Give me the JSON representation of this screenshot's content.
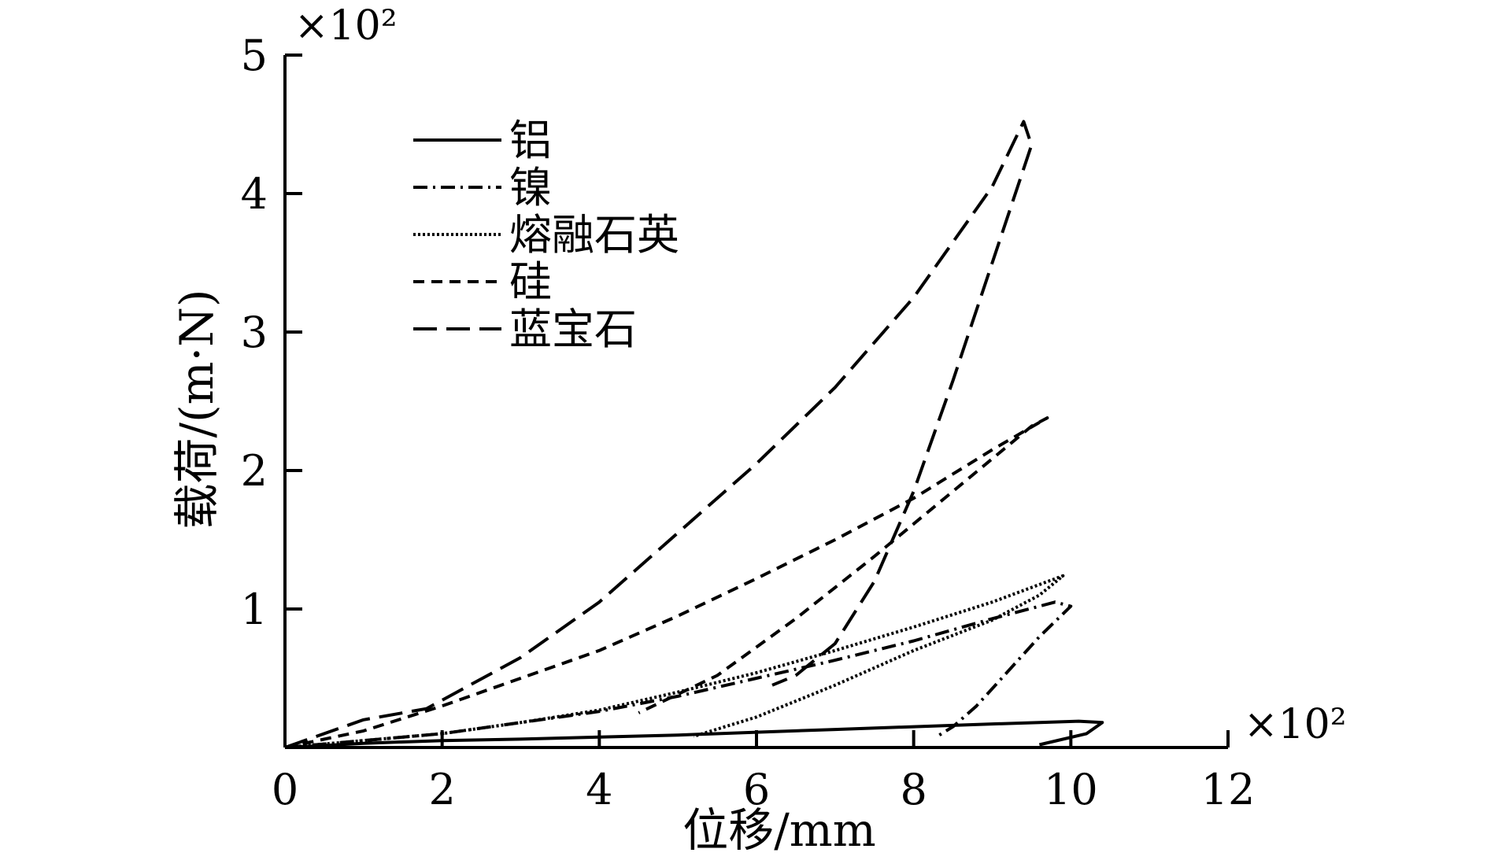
{
  "chart_data": {
    "type": "line",
    "x_scale_label": "×10²",
    "y_scale_label": "×10²",
    "xlabel": "位移/mm",
    "ylabel": "载荷/(m·N)",
    "xlim": [
      0,
      12
    ],
    "ylim": [
      0,
      5
    ],
    "x_ticks": [
      "0",
      "2",
      "4",
      "6",
      "8",
      "10",
      "12"
    ],
    "y_ticks": [
      "1",
      "2",
      "3",
      "4",
      "5"
    ],
    "legend_position": "upper-left",
    "grid": false,
    "series": [
      {
        "name": "铝",
        "style": "solid",
        "x": [
          0,
          1,
          2,
          3,
          4,
          5,
          6,
          7,
          8,
          9,
          9.6,
          10.1,
          10.4,
          10.2,
          9.6
        ],
        "y": [
          0,
          0.03,
          0.05,
          0.06,
          0.075,
          0.09,
          0.11,
          0.13,
          0.15,
          0.17,
          0.18,
          0.19,
          0.18,
          0.1,
          0.02
        ]
      },
      {
        "name": "镍",
        "style": "dashdot",
        "x": [
          0,
          1,
          2,
          3,
          4,
          5,
          6,
          7,
          8,
          9,
          9.8,
          10,
          9.6,
          9.2,
          8.8,
          8.5,
          8.3
        ],
        "y": [
          0,
          0.05,
          0.1,
          0.18,
          0.26,
          0.37,
          0.5,
          0.63,
          0.77,
          0.93,
          1.05,
          1.02,
          0.8,
          0.55,
          0.3,
          0.15,
          0.08
        ]
      },
      {
        "name": "熔融石英",
        "style": "dotted",
        "x": [
          0,
          1,
          2,
          3,
          4,
          5,
          6,
          7,
          8,
          9,
          9.9,
          9.6,
          9,
          8,
          7,
          6,
          5.2
        ],
        "y": [
          0,
          0.05,
          0.1,
          0.18,
          0.27,
          0.4,
          0.54,
          0.7,
          0.87,
          1.05,
          1.24,
          1.1,
          0.92,
          0.7,
          0.45,
          0.22,
          0.08
        ]
      },
      {
        "name": "硅",
        "style": "shortdash",
        "x": [
          0,
          1,
          2,
          3,
          4,
          5,
          6,
          7,
          8,
          9,
          9.7,
          9.5,
          8.5,
          7.5,
          6.5,
          5.5,
          4.5
        ],
        "y": [
          0,
          0.12,
          0.3,
          0.5,
          0.7,
          0.95,
          1.22,
          1.5,
          1.8,
          2.15,
          2.38,
          2.32,
          1.85,
          1.38,
          0.93,
          0.52,
          0.25
        ]
      },
      {
        "name": "蓝宝石",
        "style": "longdash",
        "x": [
          0,
          1,
          1.8,
          3,
          4,
          5,
          6,
          7,
          8,
          9,
          9.4,
          9.5,
          9,
          8.5,
          8,
          7.5,
          7,
          6.5,
          6.2
        ],
        "y": [
          0,
          0.2,
          0.28,
          0.65,
          1.05,
          1.55,
          2.05,
          2.6,
          3.25,
          4.05,
          4.52,
          4.35,
          3.5,
          2.65,
          1.85,
          1.2,
          0.75,
          0.52,
          0.45
        ]
      }
    ]
  }
}
